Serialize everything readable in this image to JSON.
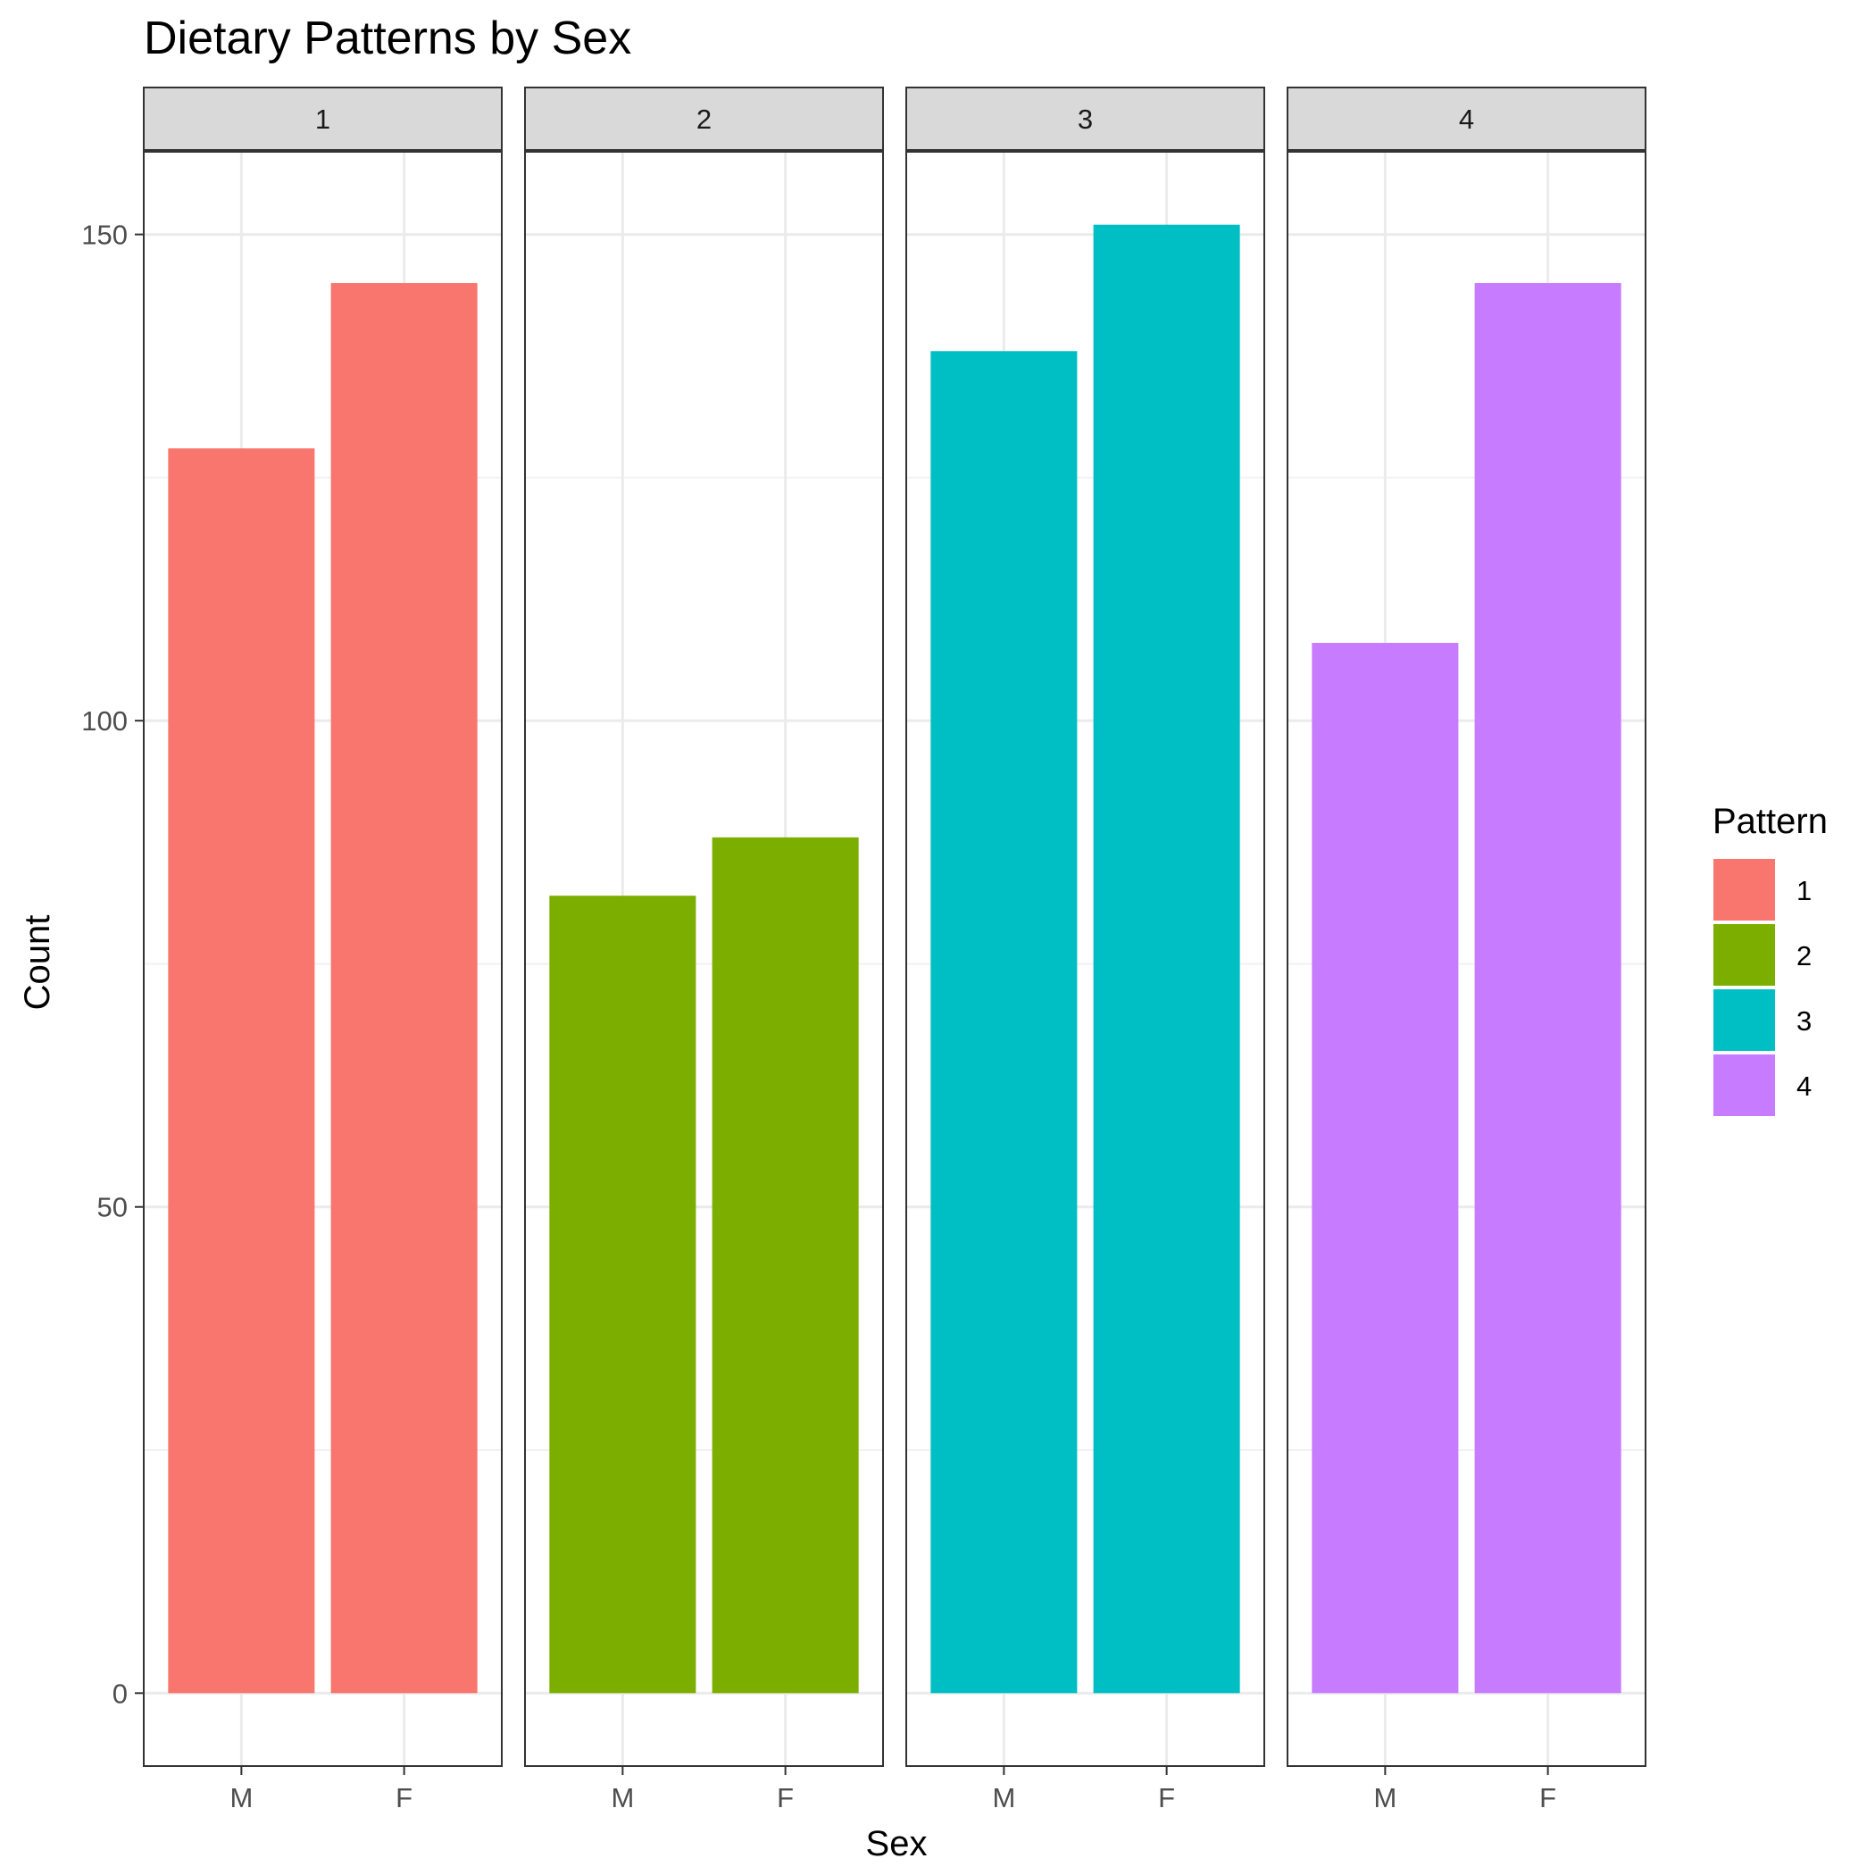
{
  "chart_data": {
    "type": "bar",
    "title": "Dietary Patterns by Sex",
    "xlabel": "Sex",
    "ylabel": "Count",
    "categories": [
      "M",
      "F"
    ],
    "facet_variable": "Pattern",
    "ylim": [
      -7.5,
      158.5
    ],
    "yticks": [
      "0",
      "50",
      "100",
      "150"
    ],
    "grid": true,
    "legend": {
      "title": "Pattern",
      "placement": "right",
      "entries": [
        "1",
        "2",
        "3",
        "4"
      ]
    },
    "panels": [
      {
        "label": "1",
        "color": "#F8766D",
        "values": [
          128,
          145
        ]
      },
      {
        "label": "2",
        "color": "#7CAE00",
        "values": [
          82,
          88
        ]
      },
      {
        "label": "3",
        "color": "#00BFC4",
        "values": [
          138,
          151
        ]
      },
      {
        "label": "4",
        "color": "#C77CFF",
        "values": [
          108,
          145
        ]
      }
    ]
  }
}
